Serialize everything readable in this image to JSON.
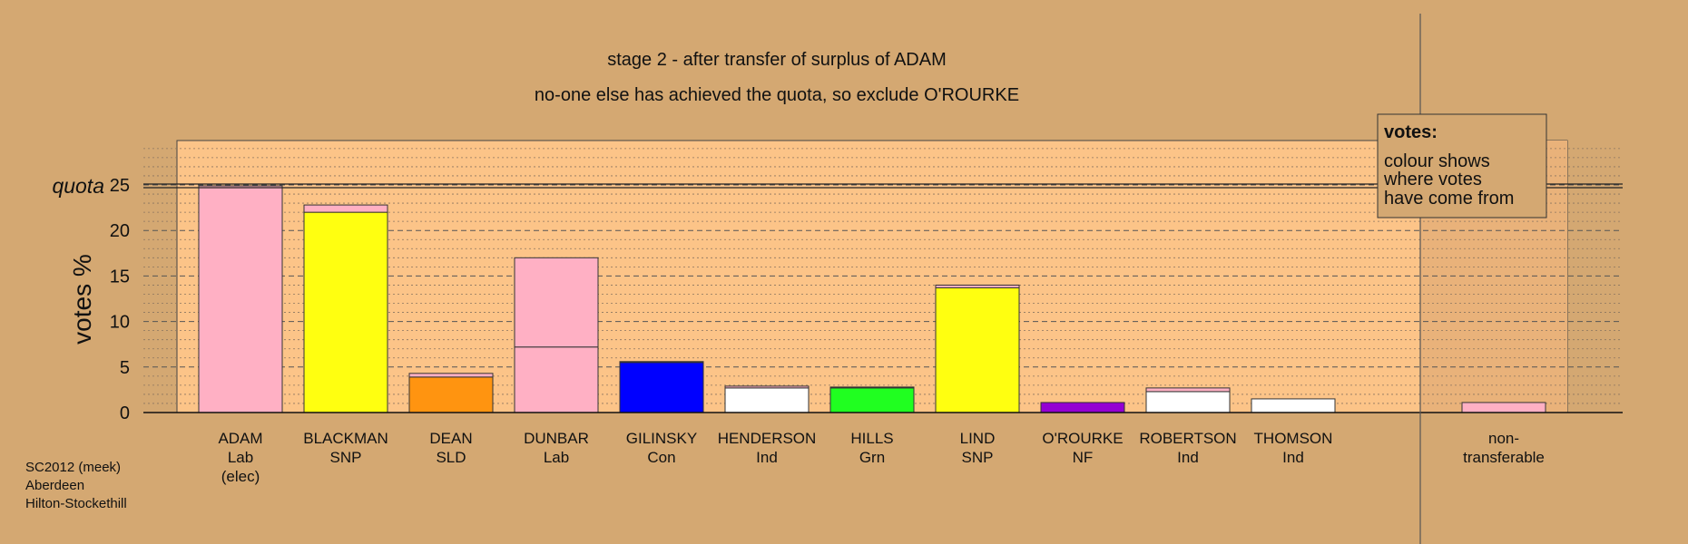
{
  "titles": {
    "line1": "stage 2 - after transfer of surplus of ADAM",
    "line2": "no-one else has achieved the quota, so exclude O'ROURKE"
  },
  "legend": {
    "title": "votes:",
    "lines": [
      "colour shows",
      "where votes",
      "have come from"
    ]
  },
  "footer": {
    "lines": [
      "SC2012 (meek)",
      "Aberdeen",
      "Hilton-Stockethill"
    ]
  },
  "colors": {
    "background": "#d4a872",
    "plot_area": "#fcc488",
    "Lab": "#ffb0c4",
    "SNP": "#ffff10",
    "SLD": "#ff9410",
    "Con": "#0000ff",
    "Ind": "#ffffff",
    "Grn": "#20ff20",
    "NF": "#9400d3"
  },
  "chart_data": {
    "type": "bar",
    "stacked": true,
    "ylabel": "votes %",
    "ylim": [
      0,
      30
    ],
    "yticks": [
      0,
      5,
      10,
      15,
      20,
      25
    ],
    "quota": {
      "label": "quota",
      "value": 24.9
    },
    "grid": true,
    "legend_placement": "top-right",
    "categories": [
      {
        "lines": [
          "ADAM",
          "Lab",
          "(elec)"
        ],
        "segments": [
          {
            "from": "Lab",
            "value": 24.9
          }
        ]
      },
      {
        "lines": [
          "BLACKMAN",
          "SNP"
        ],
        "segments": [
          {
            "from": "SNP",
            "value": 22.0
          },
          {
            "from": "Lab",
            "value": 0.8
          }
        ]
      },
      {
        "lines": [
          "DEAN",
          "SLD"
        ],
        "segments": [
          {
            "from": "SLD",
            "value": 3.9
          },
          {
            "from": "Lab",
            "value": 0.4
          }
        ]
      },
      {
        "lines": [
          "DUNBAR",
          "Lab"
        ],
        "segments": [
          {
            "from": "Lab",
            "value": 7.2
          },
          {
            "from": "Lab",
            "value": 9.8
          }
        ]
      },
      {
        "lines": [
          "GILINSKY",
          "Con"
        ],
        "segments": [
          {
            "from": "Con",
            "value": 5.5
          },
          {
            "from": "Lab",
            "value": 0.1
          }
        ]
      },
      {
        "lines": [
          "HENDERSON",
          "Ind"
        ],
        "segments": [
          {
            "from": "Ind",
            "value": 2.7
          },
          {
            "from": "Lab",
            "value": 0.2
          }
        ]
      },
      {
        "lines": [
          "HILLS",
          "Grn"
        ],
        "segments": [
          {
            "from": "Grn",
            "value": 2.7
          },
          {
            "from": "Lab",
            "value": 0.1
          }
        ]
      },
      {
        "lines": [
          "LIND",
          "SNP"
        ],
        "segments": [
          {
            "from": "SNP",
            "value": 13.7
          },
          {
            "from": "Lab",
            "value": 0.3
          }
        ]
      },
      {
        "lines": [
          "O'ROURKE",
          "NF"
        ],
        "segments": [
          {
            "from": "NF",
            "value": 1.1
          }
        ]
      },
      {
        "lines": [
          "ROBERTSON",
          "Ind"
        ],
        "segments": [
          {
            "from": "Ind",
            "value": 2.3
          },
          {
            "from": "Lab",
            "value": 0.4
          }
        ]
      },
      {
        "lines": [
          "THOMSON",
          "Ind"
        ],
        "segments": [
          {
            "from": "Ind",
            "value": 1.5
          }
        ]
      },
      {
        "lines": [
          "non-",
          "transferable"
        ],
        "segments": [
          {
            "from": "Lab",
            "value": 1.1
          }
        ]
      }
    ]
  }
}
